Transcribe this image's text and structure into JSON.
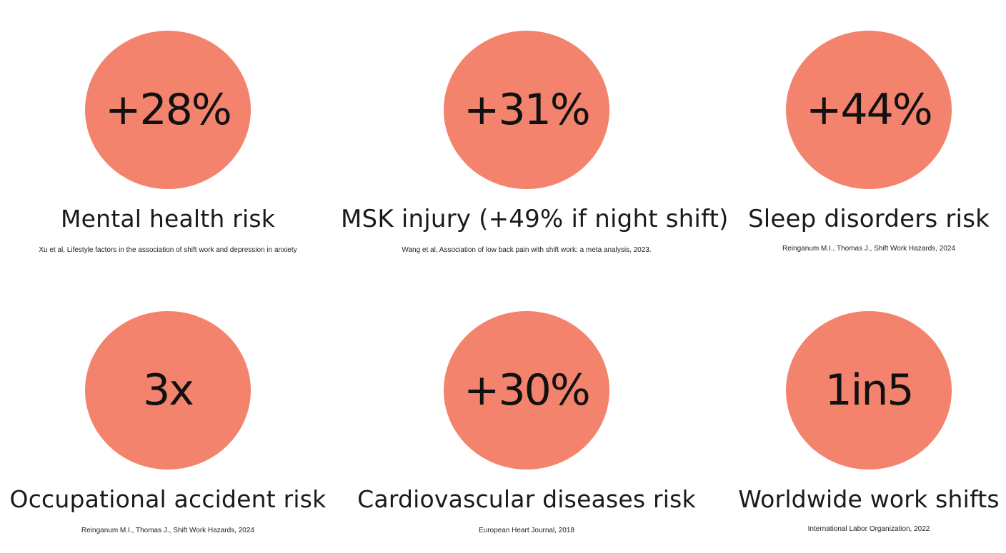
{
  "stats": [
    {
      "value": "+28%",
      "label": "Mental health risk",
      "source": "Xu et al, Lifestyle factors in the association of shift work and depression in anxiety"
    },
    {
      "value": "+31%",
      "label": "MSK injury (+49% if night shift)",
      "source": "Wang et al, Association of low back pain with shift work: a meta analysis, 2023."
    },
    {
      "value": "+44%",
      "label": "Sleep disorders risk",
      "source": "Reinganum M.I., Thomas J., Shift Work Hazards, 2024"
    },
    {
      "value": "3x",
      "label": "Occupational accident risk",
      "source": "Reinganum M.I., Thomas J., Shift Work Hazards, 2024"
    },
    {
      "value": "+30%",
      "label": "Cardiovascular diseases risk",
      "source": "European Heart Journal, 2018"
    },
    {
      "value": "1in5",
      "label": "Worldwide work shifts",
      "source": "International Labor Organization, 2022"
    }
  ],
  "colors": {
    "circle": "#f3836c",
    "text": "#111111",
    "background": "#ffffff"
  }
}
